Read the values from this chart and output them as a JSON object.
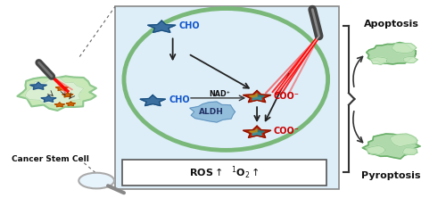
{
  "figsize": [
    5.0,
    2.22
  ],
  "dpi": 100,
  "bg_color": "#ffffff",
  "cell_color": "#b8ddb0",
  "cell_edge_color": "#7ab87a",
  "box_bg": "#ddeef8",
  "box_edge_color": "#888888",
  "membrane_color": "#7ab87a",
  "label_cancer_stem_cell": "Cancer Stem Cell",
  "label_cho": "CHO",
  "label_coo": "COO⁻",
  "label_nad": "NAD⁺",
  "label_aldh": "ALDH",
  "label_apoptosis": "Apoptosis",
  "label_pyroptosis": "Pyroptosis",
  "right_blob_color": "#a8d5a2",
  "right_blob_edge": "#6ab06a",
  "star_blue": "#3a6fa0",
  "star_blue_edge": "#1a4f80",
  "star_red": "#cc2200",
  "star_red_edge": "#990000",
  "star_orange": "#cc6600",
  "star_orange_edge": "#aa4400"
}
